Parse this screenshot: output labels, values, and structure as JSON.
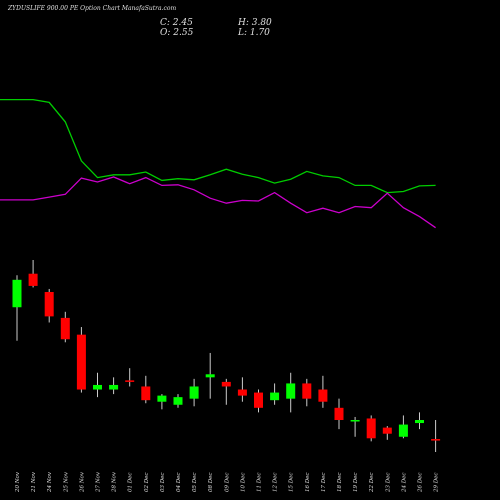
{
  "header": {
    "title": "ZYDUSLIFE 900.00  PE Option  Chart ManafaSutra.com",
    "close_label": "C: 2.45",
    "high_label": "H: 3.80",
    "open_label": "O: 2.55",
    "low_label": "L: 1.70"
  },
  "colors": {
    "background": "#000000",
    "up": "#00ff00",
    "down": "#ff0000",
    "wick": "#cccccc",
    "line_green": "#00cc00",
    "line_magenta": "#cc00cc",
    "text": "#e0e0e0"
  },
  "chart_data": {
    "type": "candlestick",
    "categories": [
      "20 Nov",
      "21 Nov",
      "24 Nov",
      "25 Nov",
      "26 Nov",
      "27 Nov",
      "28 Nov",
      "01 Dec",
      "02 Dec",
      "03 Dec",
      "04 Dec",
      "05 Dec",
      "08 Dec",
      "09 Dec",
      "10 Dec",
      "11 Dec",
      "12 Dec",
      "15 Dec",
      "16 Dec",
      "17 Dec",
      "18 Dec",
      "19 Dec",
      "22 Dec",
      "23 Dec",
      "24 Dec",
      "26 Dec",
      "29 Dec"
    ],
    "candles": [
      {
        "o": 11.2,
        "h": 13.3,
        "l": 9.0,
        "c": 13.0
      },
      {
        "o": 13.4,
        "h": 14.3,
        "l": 12.5,
        "c": 12.6
      },
      {
        "o": 12.2,
        "h": 12.4,
        "l": 10.2,
        "c": 10.6
      },
      {
        "o": 10.5,
        "h": 10.9,
        "l": 8.9,
        "c": 9.1
      },
      {
        "o": 9.4,
        "h": 9.9,
        "l": 5.6,
        "c": 5.8
      },
      {
        "o": 5.8,
        "h": 6.9,
        "l": 5.3,
        "c": 6.1
      },
      {
        "o": 5.8,
        "h": 6.6,
        "l": 5.5,
        "c": 6.1
      },
      {
        "o": 6.4,
        "h": 7.2,
        "l": 6.0,
        "c": 6.3
      },
      {
        "o": 6.0,
        "h": 6.7,
        "l": 4.9,
        "c": 5.1
      },
      {
        "o": 5.0,
        "h": 5.5,
        "l": 4.5,
        "c": 5.4
      },
      {
        "o": 4.8,
        "h": 5.5,
        "l": 4.6,
        "c": 5.3
      },
      {
        "o": 5.2,
        "h": 6.5,
        "l": 4.7,
        "c": 6.0
      },
      {
        "o": 6.6,
        "h": 8.2,
        "l": 5.2,
        "c": 6.8
      },
      {
        "o": 6.3,
        "h": 6.5,
        "l": 4.8,
        "c": 6.0
      },
      {
        "o": 5.8,
        "h": 6.6,
        "l": 5.0,
        "c": 5.4
      },
      {
        "o": 5.6,
        "h": 5.8,
        "l": 4.3,
        "c": 4.6
      },
      {
        "o": 5.1,
        "h": 6.2,
        "l": 4.8,
        "c": 5.6
      },
      {
        "o": 5.2,
        "h": 6.9,
        "l": 4.3,
        "c": 6.2
      },
      {
        "o": 6.2,
        "h": 6.5,
        "l": 4.7,
        "c": 5.2
      },
      {
        "o": 5.8,
        "h": 6.7,
        "l": 4.6,
        "c": 5.0
      },
      {
        "o": 4.6,
        "h": 5.2,
        "l": 3.2,
        "c": 3.8
      },
      {
        "o": 3.8,
        "h": 4.0,
        "l": 2.7,
        "c": 3.8
      },
      {
        "o": 3.9,
        "h": 4.1,
        "l": 2.4,
        "c": 2.6
      },
      {
        "o": 3.3,
        "h": 3.4,
        "l": 2.5,
        "c": 2.9
      },
      {
        "o": 2.7,
        "h": 4.1,
        "l": 2.6,
        "c": 3.5
      },
      {
        "o": 3.6,
        "h": 4.3,
        "l": 3.2,
        "c": 3.8
      },
      {
        "o": 2.55,
        "h": 3.8,
        "l": 1.7,
        "c": 2.45
      }
    ],
    "price_range": [
      1.7,
      14.3
    ],
    "line_series": [
      {
        "color": "green",
        "values": [
          92,
          92,
          91.5,
          88,
          81,
          78,
          78.5,
          78.5,
          79,
          77.5,
          77.8,
          77.6,
          78.5,
          79.5,
          78.6,
          78,
          77,
          77.7,
          79.1,
          78.3,
          78,
          76.6,
          76.6,
          75.3,
          75.5,
          76.5,
          76.6
        ]
      },
      {
        "color": "magenta",
        "values": [
          74,
          74,
          74.5,
          75,
          77.9,
          77.2,
          78.1,
          76.9,
          78,
          76.6,
          76.7,
          75.8,
          74.3,
          73.4,
          73.9,
          73.8,
          75.3,
          73.4,
          71.7,
          72.5,
          71.7,
          72.8,
          72.6,
          75.2,
          72.6,
          71,
          69
        ]
      }
    ],
    "line_range": [
      65,
      100
    ],
    "grid": false
  }
}
